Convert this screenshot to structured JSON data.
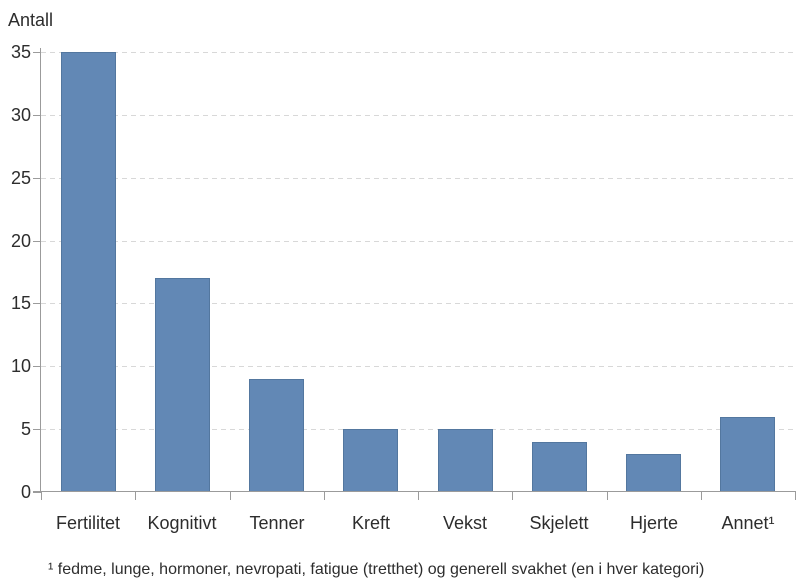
{
  "page": {
    "background": "#ffffff"
  },
  "chart_data": {
    "type": "bar",
    "title": "",
    "ylabel": "Antall",
    "xlabel": "",
    "categories": [
      "Fertilitet",
      "Kognitivt",
      "Tenner",
      "Kreft",
      "Vekst",
      "Skjelett",
      "Hjerte",
      "Annet¹"
    ],
    "values": [
      35,
      17,
      9,
      5,
      5,
      4,
      3,
      6
    ],
    "ylim": [
      0,
      35
    ],
    "yticks": [
      0,
      5,
      10,
      15,
      20,
      25,
      30,
      35
    ],
    "grid": "horizontal-dashed",
    "legend": "none",
    "footnote": "¹ fedme, lunge, hormoner, nevropati, fatigue (tretthet) og generell svakhet (en i hver kategori)",
    "colors": {
      "bar_fill": "#6288b5",
      "bar_border": "#53779f",
      "gridline": "#d8d8d8",
      "axis": "#9b9b9b",
      "text": "#2d2d2d"
    }
  }
}
